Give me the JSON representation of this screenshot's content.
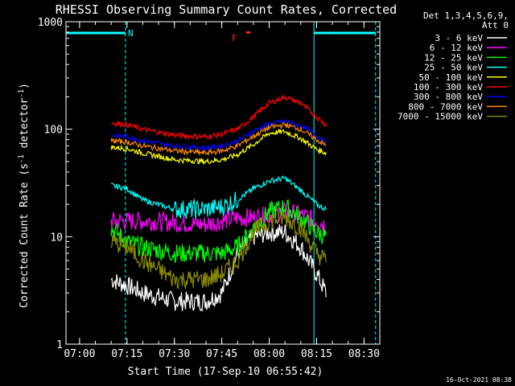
{
  "chart_data": {
    "type": "line",
    "title": "RHESSI Observing Summary Count Rates, Corrected",
    "xlabel": "Start Time (17-Sep-10 06:55:42)",
    "ylabel_main": "Corrected Count Rate (s",
    "ylabel_sup1": "-1",
    "ylabel_mid": " detector",
    "ylabel_sup2": "-1",
    "ylabel_end": ")",
    "yscale": "log",
    "xlim": [
      "06:55:42",
      "08:35:00"
    ],
    "ylim": [
      1,
      1000
    ],
    "x_ticks": [
      "07:00",
      "07:15",
      "07:30",
      "07:45",
      "08:00",
      "08:15",
      "08:30"
    ],
    "y_ticks": [
      "1",
      "10",
      "100",
      "1000"
    ],
    "legend_position": "top-right (outside plot)",
    "legend_header": [
      "Det 1,3,4,5,6,9,",
      "Att 0"
    ],
    "timestamp": "16-Oct-2021 08:38",
    "annotations": {
      "night_label": "N",
      "flare_label": "F",
      "night_intervals": [
        [
          "06:55:42",
          "07:14:30"
        ],
        [
          "08:14:10",
          "08:33:40"
        ]
      ],
      "flare_time": "07:51:30",
      "flare_level": 800,
      "markers": [
        "07:14:30",
        "08:14:10",
        "08:33:40"
      ]
    },
    "series": [
      {
        "name": "3 - 6 keV",
        "color": "#ffffff",
        "points": [
          [
            "07:10",
            4
          ],
          [
            "07:15",
            3.5
          ],
          [
            "07:20",
            3
          ],
          [
            "07:30",
            2.5
          ],
          [
            "07:40",
            2.5
          ],
          [
            "07:45",
            3
          ],
          [
            "07:50",
            7
          ],
          [
            "07:55",
            10
          ],
          [
            "08:00",
            11
          ],
          [
            "08:05",
            11
          ],
          [
            "08:10",
            8
          ],
          [
            "08:15",
            4.5
          ],
          [
            "08:18",
            3
          ]
        ]
      },
      {
        "name": "6 - 12 keV",
        "color": "#ff00ff",
        "points": [
          [
            "07:10",
            14
          ],
          [
            "07:15",
            14
          ],
          [
            "07:20",
            14
          ],
          [
            "07:30",
            13.5
          ],
          [
            "07:40",
            13
          ],
          [
            "07:45",
            14
          ],
          [
            "07:50",
            15
          ],
          [
            "07:55",
            15
          ],
          [
            "08:00",
            16
          ],
          [
            "08:05",
            17
          ],
          [
            "08:10",
            16
          ],
          [
            "08:15",
            14
          ],
          [
            "08:18",
            13
          ]
        ]
      },
      {
        "name": "12 - 25 keV",
        "color": "#00ff00",
        "points": [
          [
            "07:10",
            12
          ],
          [
            "07:15",
            9
          ],
          [
            "07:20",
            8
          ],
          [
            "07:30",
            7
          ],
          [
            "07:40",
            7
          ],
          [
            "07:45",
            7
          ],
          [
            "07:50",
            8
          ],
          [
            "07:55",
            12
          ],
          [
            "08:00",
            17
          ],
          [
            "08:05",
            19
          ],
          [
            "08:10",
            15
          ],
          [
            "08:15",
            11
          ],
          [
            "08:18",
            10
          ]
        ]
      },
      {
        "name": "25 - 50 keV",
        "color": "#00ffff",
        "points": [
          [
            "07:10",
            30
          ],
          [
            "07:15",
            28
          ],
          [
            "07:20",
            22
          ],
          [
            "07:30",
            18
          ],
          [
            "07:40",
            18
          ],
          [
            "07:45",
            19
          ],
          [
            "07:50",
            22
          ],
          [
            "07:55",
            28
          ],
          [
            "08:00",
            33
          ],
          [
            "08:05",
            35
          ],
          [
            "08:10",
            27
          ],
          [
            "08:15",
            20
          ],
          [
            "08:18",
            18
          ]
        ]
      },
      {
        "name": "50 - 100 keV",
        "color": "#ffff00",
        "points": [
          [
            "07:10",
            68
          ],
          [
            "07:15",
            66
          ],
          [
            "07:20",
            60
          ],
          [
            "07:30",
            52
          ],
          [
            "07:40",
            50
          ],
          [
            "07:45",
            52
          ],
          [
            "07:50",
            58
          ],
          [
            "07:55",
            72
          ],
          [
            "08:00",
            92
          ],
          [
            "08:05",
            95
          ],
          [
            "08:10",
            82
          ],
          [
            "08:15",
            65
          ],
          [
            "08:18",
            60
          ]
        ]
      },
      {
        "name": "100 - 300 keV",
        "color": "#ff0000",
        "points": [
          [
            "07:10",
            115
          ],
          [
            "07:15",
            110
          ],
          [
            "07:20",
            100
          ],
          [
            "07:30",
            88
          ],
          [
            "07:40",
            85
          ],
          [
            "07:45",
            90
          ],
          [
            "07:50",
            100
          ],
          [
            "07:55",
            130
          ],
          [
            "08:00",
            175
          ],
          [
            "08:05",
            200
          ],
          [
            "08:10",
            175
          ],
          [
            "08:15",
            130
          ],
          [
            "08:18",
            110
          ]
        ]
      },
      {
        "name": "300 - 800 keV",
        "color": "#0000ff",
        "points": [
          [
            "07:10",
            88
          ],
          [
            "07:15",
            85
          ],
          [
            "07:20",
            78
          ],
          [
            "07:30",
            70
          ],
          [
            "07:40",
            67
          ],
          [
            "07:45",
            70
          ],
          [
            "07:50",
            78
          ],
          [
            "07:55",
            96
          ],
          [
            "08:00",
            112
          ],
          [
            "08:05",
            118
          ],
          [
            "08:10",
            108
          ],
          [
            "08:15",
            88
          ],
          [
            "08:18",
            75
          ]
        ]
      },
      {
        "name": "800 - 7000 keV",
        "color": "#ff8800",
        "points": [
          [
            "07:10",
            78
          ],
          [
            "07:15",
            76
          ],
          [
            "07:20",
            70
          ],
          [
            "07:30",
            63
          ],
          [
            "07:40",
            60
          ],
          [
            "07:45",
            63
          ],
          [
            "07:50",
            70
          ],
          [
            "07:55",
            86
          ],
          [
            "08:00",
            104
          ],
          [
            "08:05",
            110
          ],
          [
            "08:10",
            100
          ],
          [
            "08:15",
            80
          ],
          [
            "08:18",
            70
          ]
        ]
      },
      {
        "name": "7000 - 15000 keV",
        "color": "#888800",
        "points": [
          [
            "07:10",
            9
          ],
          [
            "07:15",
            8
          ],
          [
            "07:20",
            6
          ],
          [
            "07:30",
            4
          ],
          [
            "07:40",
            4
          ],
          [
            "07:45",
            4.5
          ],
          [
            "07:50",
            6
          ],
          [
            "07:55",
            11
          ],
          [
            "08:00",
            14
          ],
          [
            "08:05",
            15
          ],
          [
            "08:10",
            12
          ],
          [
            "08:15",
            7
          ],
          [
            "08:18",
            6
          ]
        ]
      }
    ]
  }
}
